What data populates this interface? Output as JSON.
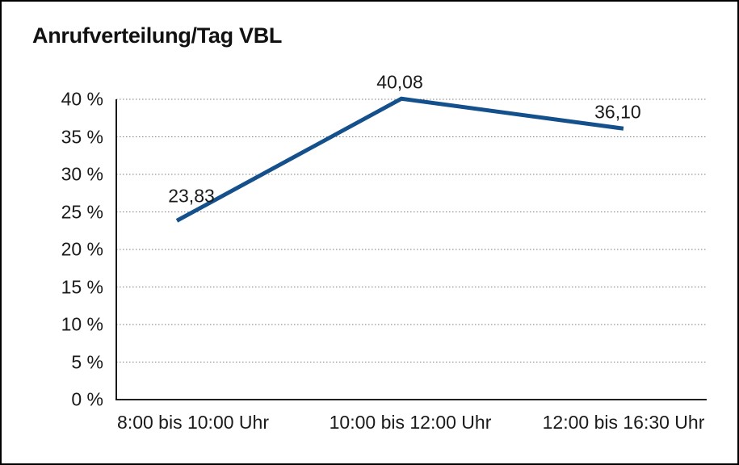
{
  "chart_data": {
    "type": "line",
    "title": "Anrufverteilung/Tag VBL",
    "categories": [
      "8:00 bis 10:00 Uhr",
      "10:00 bis 12:00 Uhr",
      "12:00 bis 16:30 Uhr"
    ],
    "values": [
      23.83,
      40.08,
      36.1
    ],
    "value_labels": [
      "23,83",
      "40,08",
      "36,10"
    ],
    "yticks": [
      0,
      5,
      10,
      15,
      20,
      25,
      30,
      35,
      40
    ],
    "ytick_labels": [
      "0 %",
      "5 %",
      "10 %",
      "15 %",
      "20 %",
      "25 %",
      "30 %",
      "35 %",
      "40 %"
    ],
    "ylim": [
      0,
      40
    ],
    "xlabel": "",
    "ylabel": "",
    "legend": "none",
    "grid": "horizontal-dotted",
    "line_color": "#14508c",
    "grid_color": "#7d7d7d",
    "axis_color": "#000000",
    "text_color": "#1a1a1a"
  }
}
